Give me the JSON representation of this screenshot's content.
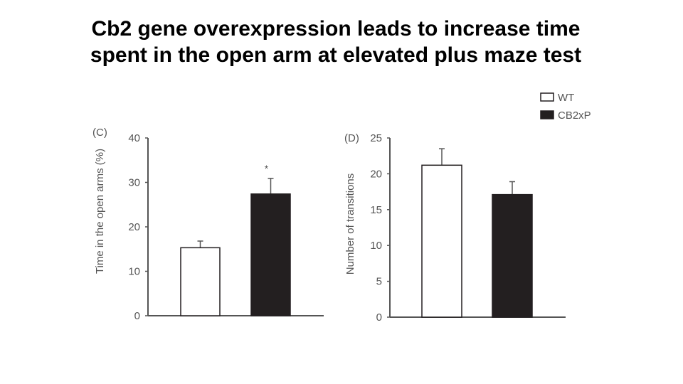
{
  "title": {
    "line1": "Cb2 gene overexpression leads to increase time",
    "line2": "spent in the open arm at elevated plus maze test"
  },
  "legend": {
    "items": [
      {
        "label": "WT",
        "fill": "#ffffff"
      },
      {
        "label": "CB2xP",
        "fill": "#231f20"
      }
    ]
  },
  "colors": {
    "axis": "#555555",
    "wt": "#ffffff",
    "cb2xp": "#231f20",
    "error": "#555555"
  },
  "chart_data": [
    {
      "type": "bar",
      "panel": "(C)",
      "categories": [
        "WT",
        "CB2xP"
      ],
      "values": [
        15.3,
        27.4
      ],
      "errors": [
        1.5,
        3.5
      ],
      "annotations": [
        "",
        "*"
      ],
      "ylabel": "Time in the open arms (%)",
      "xlabel": "",
      "ylim": [
        0,
        40
      ],
      "yticks": [
        0,
        10,
        20,
        30,
        40
      ]
    },
    {
      "type": "bar",
      "panel": "(D)",
      "categories": [
        "WT",
        "CB2xP"
      ],
      "values": [
        21.2,
        17.1
      ],
      "errors": [
        2.3,
        1.8
      ],
      "annotations": [
        "",
        ""
      ],
      "ylabel": "Number of transitions",
      "xlabel": "",
      "ylim": [
        0,
        25
      ],
      "yticks": [
        0,
        5,
        10,
        15,
        20,
        25
      ]
    }
  ]
}
